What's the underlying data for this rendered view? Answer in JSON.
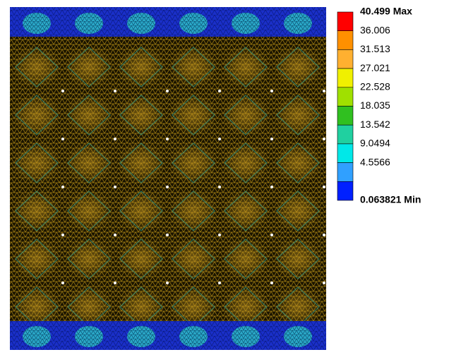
{
  "legend": {
    "labels": [
      "40.499 Max",
      "36.006",
      "31.513",
      "27.021",
      "22.528",
      "18.035",
      "13.542",
      "9.0494",
      "4.5566",
      "0.063821 Min"
    ]
  }
}
